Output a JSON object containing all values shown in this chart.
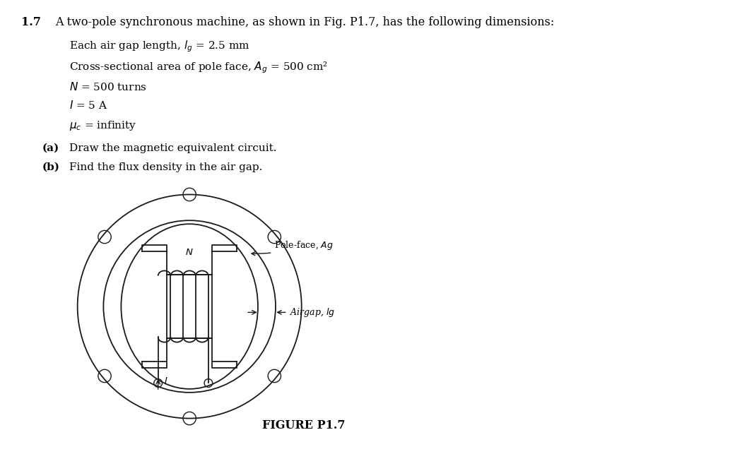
{
  "title_num": "1.7",
  "title_text": "A two-pole synchronous machine, as shown in Fig. P1.7, has the following dimensions:",
  "bullet1": "Each air gap length, $l_g$ = 2.5 mm",
  "bullet2": "Cross-sectional area of pole face, $A_g$ = 500 cm²",
  "bullet3": "$N$ = 500 turns",
  "bullet4": "$I$ = 5 A",
  "bullet5": "$\\mu_c$ = infinity",
  "part_a": "(a)   Draw the magnetic equivalent circuit.",
  "part_b": "(b)   Find the flux density in the air gap.",
  "figure_label": "FIGURE P1.7",
  "label_poleface": "Pole-face, Ag",
  "label_airgap": "Airgap, lg",
  "label_N": "N",
  "label_I": "I",
  "bg_color": "#ffffff",
  "line_color": "#1a1a1a"
}
